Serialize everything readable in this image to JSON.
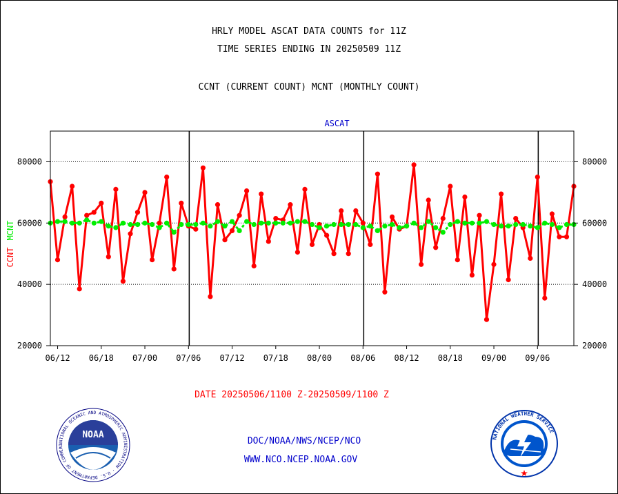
{
  "titles": {
    "line1": "HRLY MODEL ASCAT DATA COUNTS for 11Z",
    "line2": "TIME SERIES ENDING IN 20250509 11Z",
    "line3": "CCNT (CURRENT COUNT) MCNT (MONTHLY COUNT)"
  },
  "footer": {
    "date_range": "DATE 20250506/1100 Z-20250509/1100 Z",
    "credit_org": "DOC/NOAA/NWS/NCEP/NCO",
    "credit_url": "WWW.NCO.NCEP.NOAA.GOV"
  },
  "logos": {
    "left": {
      "name": "noaa-logo",
      "wordmark": "NOAA",
      "ring_text": "NATIONAL OCEANIC AND ATMOSPHERIC ADMINISTRATION · U.S. DEPARTMENT OF COMMERCE"
    },
    "right": {
      "name": "nws-logo",
      "ring_text": "NATIONAL WEATHER SERVICE"
    }
  },
  "colors": {
    "ccnt": "#ff0000",
    "mcnt": "#00ee00",
    "label_blue": "#0000cc"
  },
  "chart_data": {
    "type": "line",
    "title": "ASCAT",
    "ylabel_left": [
      "CCNT",
      "MCNT"
    ],
    "ylim": [
      20000,
      90000
    ],
    "yticks": [
      20000,
      40000,
      60000,
      80000
    ],
    "ytick_labels": [
      "20000",
      "40000",
      "60000",
      "80000"
    ],
    "xtick_labels": [
      "06/12",
      "06/18",
      "07/00",
      "07/06",
      "07/12",
      "07/18",
      "08/00",
      "08/06",
      "08/12",
      "08/18",
      "09/00",
      "09/06"
    ],
    "xtick_index": [
      1,
      7,
      13,
      19,
      25,
      31,
      37,
      43,
      49,
      55,
      61,
      67
    ],
    "day_dividers_index": [
      19.1,
      43.1,
      67.1
    ],
    "n_points": 73,
    "series": [
      {
        "name": "CCNT",
        "color": "#ff0000",
        "values": [
          73500,
          48000,
          62000,
          72000,
          38500,
          62500,
          63500,
          66500,
          49000,
          71000,
          41000,
          56500,
          63500,
          70000,
          48000,
          60000,
          75000,
          45000,
          66500,
          59000,
          58000,
          78000,
          36000,
          66000,
          54500,
          57500,
          62500,
          70500,
          46000,
          69500,
          54000,
          61500,
          61000,
          66000,
          50500,
          71000,
          53000,
          59500,
          56000,
          50000,
          64000,
          50000,
          64000,
          60000,
          53000,
          76000,
          37500,
          62000,
          58000,
          59000,
          79000,
          46500,
          67500,
          52000,
          61500,
          72000,
          48000,
          68500,
          43000,
          62500,
          28500,
          46500,
          69500,
          41500,
          61500,
          58500,
          48500,
          75000,
          35500,
          63000,
          55500,
          55500,
          72000
        ]
      },
      {
        "name": "MCNT",
        "color": "#00ee00",
        "values": [
          60000,
          60500,
          60500,
          60000,
          60000,
          61000,
          60000,
          60500,
          59000,
          58500,
          60000,
          59500,
          59500,
          60000,
          59500,
          58500,
          60000,
          57000,
          59500,
          59500,
          59500,
          60000,
          59000,
          60500,
          59000,
          60500,
          57500,
          60500,
          59500,
          60000,
          60000,
          60000,
          60000,
          60000,
          60500,
          60500,
          59500,
          58500,
          59000,
          59500,
          59500,
          59500,
          59500,
          58500,
          59000,
          57500,
          59000,
          59500,
          58500,
          59000,
          60000,
          58500,
          60500,
          58500,
          57000,
          59500,
          60500,
          60000,
          60000,
          60000,
          60500,
          59500,
          59000,
          59000,
          59500,
          59500,
          59000,
          58500,
          60000,
          59500,
          58500,
          59500,
          59500
        ]
      }
    ],
    "grid": "horizontal",
    "legend": "left-axis-label"
  }
}
